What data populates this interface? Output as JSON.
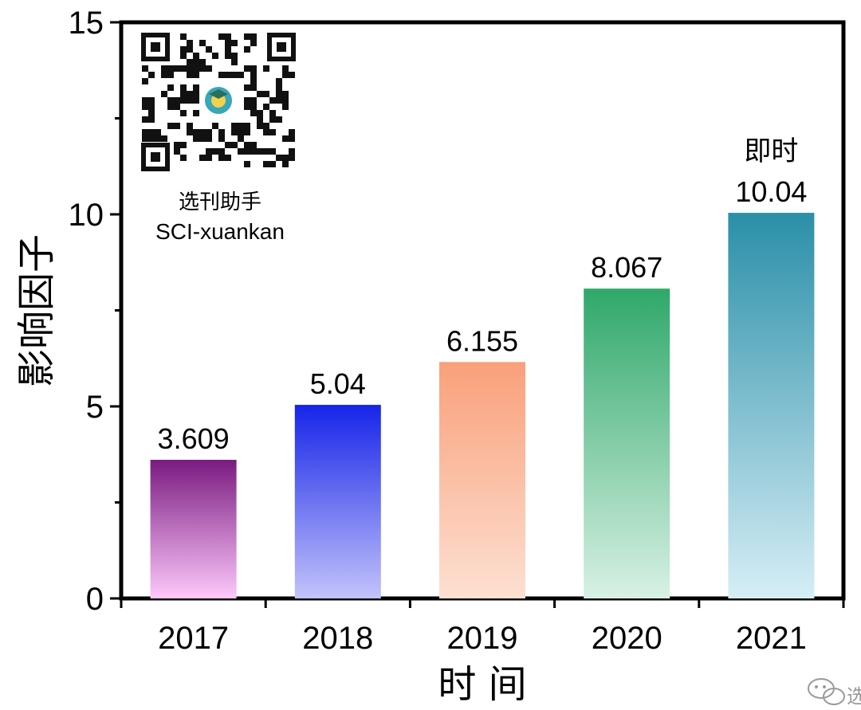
{
  "chart_data": {
    "type": "bar",
    "categories": [
      "2017",
      "2018",
      "2019",
      "2020",
      "2021"
    ],
    "values": [
      3.609,
      5.04,
      6.155,
      8.067,
      10.04
    ],
    "data_labels": [
      "3.609",
      "5.04",
      "6.155",
      "8.067",
      "10.04"
    ],
    "annotation": "即时",
    "annotation_category": "2021",
    "xlabel": "时 间",
    "ylabel": "影响因子",
    "ylim": [
      0,
      15
    ],
    "yticks": [
      "0",
      "5",
      "10",
      "15"
    ],
    "grid": false,
    "bar_gradients": [
      {
        "top": "#7a1a80",
        "bottom": "#fdc8fb"
      },
      {
        "top": "#1624e8",
        "bottom": "#c3c3fb"
      },
      {
        "top": "#f9a07a",
        "bottom": "#fde0d2"
      },
      {
        "top": "#2fa86a",
        "bottom": "#d8f1e4"
      },
      {
        "top": "#2a8fa8",
        "bottom": "#d6eef6"
      }
    ]
  },
  "watermark": {
    "cn": "选刊助手",
    "en": "SCI-xuankan",
    "qr_icon": "qr-code-icon"
  },
  "corner_mark": {
    "icon": "wechat-icon",
    "text": "选"
  }
}
